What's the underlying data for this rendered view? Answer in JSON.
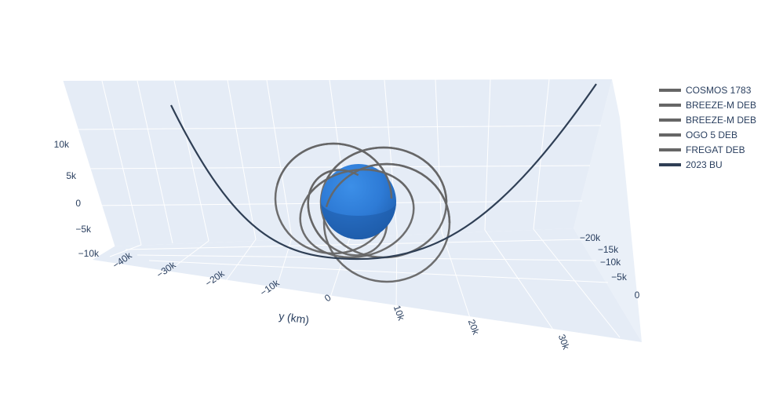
{
  "chart_data": {
    "type": "line",
    "projection": "3d-orbit",
    "scene_background": "#e5ecf6",
    "grid": true,
    "legend_position": "top-right",
    "axes": {
      "x": {
        "title": "",
        "ticks": [
          "−20k",
          "−15k",
          "−10k",
          "−5k",
          "0"
        ]
      },
      "y": {
        "title": "y (km)",
        "ticks": [
          "−40k",
          "−30k",
          "−20k",
          "−10k",
          "0",
          "10k",
          "20k",
          "30k"
        ]
      },
      "z": {
        "title": "",
        "ticks": [
          "−10k",
          "−5k",
          "0",
          "5k",
          "10k"
        ]
      }
    },
    "earth": {
      "name": "Earth",
      "color": "#2e7bd6"
    },
    "series": [
      {
        "name": "COSMOS 1783",
        "color": "#666666",
        "width": 3
      },
      {
        "name": "BREEZE-M DEB",
        "color": "#666666",
        "width": 3
      },
      {
        "name": "BREEZE-M DEB",
        "color": "#666666",
        "width": 3
      },
      {
        "name": "OGO 5 DEB",
        "color": "#666666",
        "width": 3
      },
      {
        "name": "FREGAT DEB",
        "color": "#666666",
        "width": 3
      },
      {
        "name": "2023 BU",
        "color": "#2f3f55",
        "width": 3
      }
    ]
  }
}
